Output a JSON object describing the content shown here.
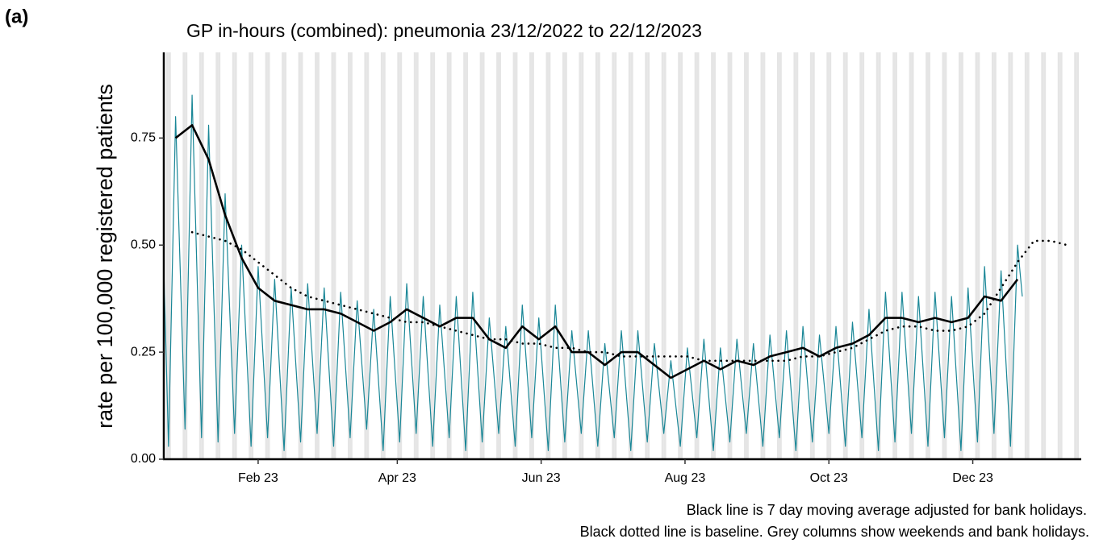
{
  "panel_label": "(a)",
  "chart_data": {
    "type": "line",
    "title": "GP in-hours (combined): pneumonia 23/12/2022 to 22/12/2023",
    "ylabel": "rate per 100,000 registered patients",
    "annotations": [
      "Black line is 7 day moving average adjusted for bank holidays.",
      "Black dotted line is baseline. Grey columns show weekends and bank holidays."
    ],
    "xlim": [
      "2022-12-23",
      "2024-01-16"
    ],
    "xticks": [
      {
        "value": "2023-02-01",
        "label": "Feb 23"
      },
      {
        "value": "2023-04-01",
        "label": "Apr 23"
      },
      {
        "value": "2023-06-01",
        "label": "Jun 23"
      },
      {
        "value": "2023-08-01",
        "label": "Aug 23"
      },
      {
        "value": "2023-10-01",
        "label": "Oct 23"
      },
      {
        "value": "2023-12-01",
        "label": "Dec 23"
      }
    ],
    "ylim": [
      0,
      0.95
    ],
    "yticks": [
      {
        "value": 0,
        "label": "0.00"
      },
      {
        "value": 0.25,
        "label": "0.25"
      },
      {
        "value": 0.5,
        "label": "0.50"
      },
      {
        "value": 0.75,
        "label": "0.75"
      }
    ],
    "weekend_color": "#e5e5e5",
    "series": [
      {
        "color": "#1a8797",
        "style": "solid",
        "width": 1.2,
        "x": [
          "2022-12-23",
          "2022-12-25",
          "2022-12-28",
          "2023-01-01",
          "2023-01-04",
          "2023-01-08",
          "2023-01-11",
          "2023-01-15",
          "2023-01-18",
          "2023-01-22",
          "2023-01-25",
          "2023-01-29",
          "2023-02-01",
          "2023-02-05",
          "2023-02-08",
          "2023-02-12",
          "2023-02-15",
          "2023-02-19",
          "2023-02-22",
          "2023-02-26",
          "2023-03-01",
          "2023-03-05",
          "2023-03-08",
          "2023-03-12",
          "2023-03-15",
          "2023-03-19",
          "2023-03-22",
          "2023-03-26",
          "2023-03-29",
          "2023-04-02",
          "2023-04-05",
          "2023-04-09",
          "2023-04-12",
          "2023-04-16",
          "2023-04-19",
          "2023-04-23",
          "2023-04-26",
          "2023-04-30",
          "2023-05-03",
          "2023-05-07",
          "2023-05-10",
          "2023-05-14",
          "2023-05-17",
          "2023-05-21",
          "2023-05-24",
          "2023-05-28",
          "2023-05-31",
          "2023-06-04",
          "2023-06-07",
          "2023-06-11",
          "2023-06-14",
          "2023-06-18",
          "2023-06-21",
          "2023-06-25",
          "2023-06-28",
          "2023-07-02",
          "2023-07-05",
          "2023-07-09",
          "2023-07-12",
          "2023-07-16",
          "2023-07-19",
          "2023-07-23",
          "2023-07-26",
          "2023-07-30",
          "2023-08-02",
          "2023-08-06",
          "2023-08-09",
          "2023-08-13",
          "2023-08-16",
          "2023-08-20",
          "2023-08-23",
          "2023-08-27",
          "2023-08-30",
          "2023-09-03",
          "2023-09-06",
          "2023-09-10",
          "2023-09-13",
          "2023-09-17",
          "2023-09-20",
          "2023-09-24",
          "2023-09-27",
          "2023-10-01",
          "2023-10-04",
          "2023-10-08",
          "2023-10-11",
          "2023-10-15",
          "2023-10-18",
          "2023-10-22",
          "2023-10-25",
          "2023-10-29",
          "2023-11-01",
          "2023-11-05",
          "2023-11-08",
          "2023-11-12",
          "2023-11-15",
          "2023-11-19",
          "2023-11-22",
          "2023-11-26",
          "2023-11-29",
          "2023-12-03",
          "2023-12-06",
          "2023-12-10",
          "2023-12-13",
          "2023-12-17",
          "2023-12-20",
          "2023-12-22"
        ],
        "values": [
          0.45,
          0.03,
          0.8,
          0.07,
          0.85,
          0.05,
          0.78,
          0.04,
          0.62,
          0.06,
          0.5,
          0.03,
          0.45,
          0.05,
          0.42,
          0.02,
          0.4,
          0.04,
          0.41,
          0.06,
          0.4,
          0.03,
          0.39,
          0.05,
          0.37,
          0.07,
          0.35,
          0.02,
          0.38,
          0.04,
          0.41,
          0.06,
          0.38,
          0.03,
          0.36,
          0.05,
          0.38,
          0.02,
          0.39,
          0.04,
          0.33,
          0.06,
          0.31,
          0.03,
          0.36,
          0.05,
          0.33,
          0.02,
          0.36,
          0.04,
          0.3,
          0.06,
          0.3,
          0.03,
          0.27,
          0.05,
          0.3,
          0.02,
          0.3,
          0.04,
          0.27,
          0.06,
          0.23,
          0.03,
          0.26,
          0.05,
          0.28,
          0.02,
          0.26,
          0.04,
          0.28,
          0.06,
          0.27,
          0.03,
          0.29,
          0.05,
          0.3,
          0.02,
          0.31,
          0.04,
          0.29,
          0.06,
          0.31,
          0.03,
          0.32,
          0.05,
          0.35,
          0.02,
          0.39,
          0.04,
          0.39,
          0.06,
          0.38,
          0.03,
          0.39,
          0.05,
          0.38,
          0.02,
          0.4,
          0.04,
          0.45,
          0.06,
          0.44,
          0.03,
          0.5,
          0.38
        ]
      },
      {
        "color": "#000000",
        "style": "solid",
        "width": 2.6,
        "x": [
          "2022-12-28",
          "2023-01-04",
          "2023-01-11",
          "2023-01-18",
          "2023-01-25",
          "2023-02-01",
          "2023-02-08",
          "2023-02-15",
          "2023-02-22",
          "2023-03-01",
          "2023-03-08",
          "2023-03-15",
          "2023-03-22",
          "2023-03-29",
          "2023-04-05",
          "2023-04-12",
          "2023-04-19",
          "2023-04-26",
          "2023-05-03",
          "2023-05-10",
          "2023-05-17",
          "2023-05-24",
          "2023-05-31",
          "2023-06-07",
          "2023-06-14",
          "2023-06-21",
          "2023-06-28",
          "2023-07-05",
          "2023-07-12",
          "2023-07-19",
          "2023-07-26",
          "2023-08-02",
          "2023-08-09",
          "2023-08-16",
          "2023-08-23",
          "2023-08-30",
          "2023-09-06",
          "2023-09-13",
          "2023-09-20",
          "2023-09-27",
          "2023-10-04",
          "2023-10-11",
          "2023-10-18",
          "2023-10-25",
          "2023-11-01",
          "2023-11-08",
          "2023-11-15",
          "2023-11-22",
          "2023-11-29",
          "2023-12-06",
          "2023-12-13",
          "2023-12-20",
          "2023-12-27",
          "2024-01-03",
          "2024-01-10"
        ],
        "values": [
          0.75,
          0.78,
          0.7,
          0.57,
          0.47,
          0.4,
          0.37,
          0.36,
          0.35,
          0.35,
          0.34,
          0.32,
          0.3,
          0.32,
          0.35,
          0.33,
          0.31,
          0.33,
          0.33,
          0.28,
          0.26,
          0.31,
          0.28,
          0.31,
          0.25,
          0.25,
          0.22,
          0.25,
          0.25,
          0.22,
          0.19,
          0.21,
          0.23,
          0.21,
          0.23,
          0.22,
          0.24,
          0.25,
          0.26,
          0.24,
          0.26,
          0.27,
          0.29,
          0.33,
          0.33,
          0.32,
          0.33,
          0.32,
          0.33,
          0.38,
          0.37,
          0.42,
          null,
          null,
          null
        ]
      },
      {
        "color": "#000000",
        "style": "dotted",
        "width": 2.6,
        "x": [
          "2022-12-28",
          "2023-01-04",
          "2023-01-11",
          "2023-01-18",
          "2023-01-25",
          "2023-02-01",
          "2023-02-08",
          "2023-02-15",
          "2023-02-22",
          "2023-03-01",
          "2023-03-08",
          "2023-03-15",
          "2023-03-22",
          "2023-03-29",
          "2023-04-05",
          "2023-04-12",
          "2023-04-19",
          "2023-04-26",
          "2023-05-03",
          "2023-05-10",
          "2023-05-17",
          "2023-05-24",
          "2023-05-31",
          "2023-06-07",
          "2023-06-14",
          "2023-06-21",
          "2023-06-28",
          "2023-07-05",
          "2023-07-12",
          "2023-07-19",
          "2023-07-26",
          "2023-08-02",
          "2023-08-09",
          "2023-08-16",
          "2023-08-23",
          "2023-08-30",
          "2023-09-06",
          "2023-09-13",
          "2023-09-20",
          "2023-09-27",
          "2023-10-04",
          "2023-10-11",
          "2023-10-18",
          "2023-10-25",
          "2023-11-01",
          "2023-11-08",
          "2023-11-15",
          "2023-11-22",
          "2023-11-29",
          "2023-12-06",
          "2023-12-13",
          "2023-12-20",
          "2023-12-27",
          "2024-01-03",
          "2024-01-10"
        ],
        "values": [
          null,
          0.53,
          0.52,
          0.51,
          0.49,
          0.46,
          0.43,
          0.4,
          0.38,
          0.37,
          0.36,
          0.35,
          0.34,
          0.33,
          0.32,
          0.32,
          0.31,
          0.3,
          0.29,
          0.28,
          0.28,
          0.27,
          0.27,
          0.26,
          0.26,
          0.25,
          0.25,
          0.24,
          0.24,
          0.24,
          0.24,
          0.24,
          0.23,
          0.23,
          0.23,
          0.23,
          0.23,
          0.23,
          0.24,
          0.24,
          0.25,
          0.26,
          0.28,
          0.3,
          0.31,
          0.31,
          0.3,
          0.3,
          0.31,
          0.34,
          0.4,
          0.46,
          0.51,
          0.51,
          0.5
        ]
      }
    ]
  }
}
